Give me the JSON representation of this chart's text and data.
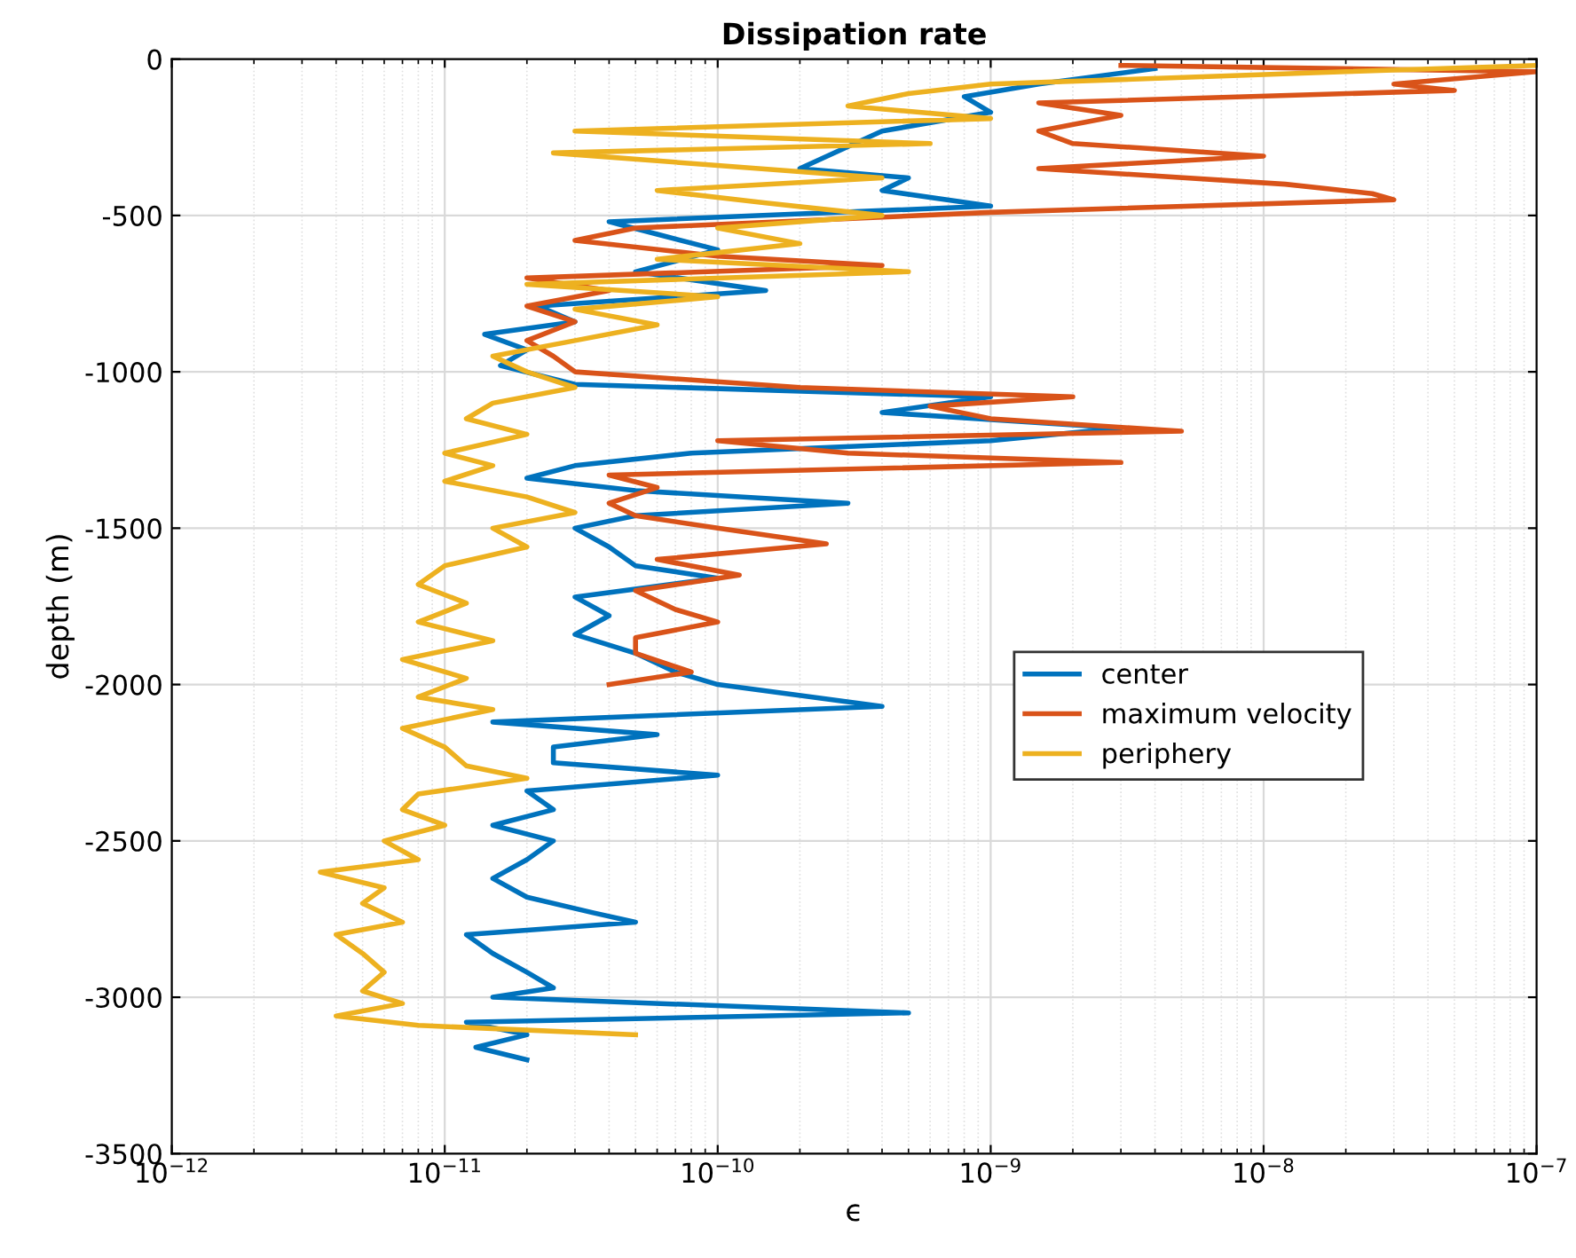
{
  "chart_data": {
    "type": "line",
    "title": "Dissipation rate",
    "xlabel": "ϵ",
    "ylabel": "depth (m)",
    "log": "x",
    "grid": true,
    "legend": "center right",
    "line_style": "solid",
    "marker": "none",
    "xlim": [
      1e-12,
      1e-07
    ],
    "xticks": [
      {
        "value": 1e-12,
        "label": "10$^{−12}$"
      },
      {
        "value": 1e-11,
        "label": "10$^{−11}$"
      },
      {
        "value": 1e-10,
        "label": "10$^{−10}$"
      },
      {
        "value": 1e-09,
        "label": "10$^{−9}$"
      },
      {
        "value": 1e-08,
        "label": "10$^{−8}$"
      },
      {
        "value": 1e-07,
        "label": "10$^{−7}$"
      }
    ],
    "ylim": [
      -3500,
      0
    ],
    "yticks": [
      -3500,
      -3000,
      -2500,
      -2000,
      -1500,
      -1000,
      -500,
      0
    ],
    "series": [
      {
        "name": "center",
        "color": "#0072bd",
        "x": [
          4e-09,
          1.5e-09,
          8e-10,
          1e-09,
          4e-10,
          3e-10,
          2e-10,
          5e-10,
          4e-10,
          1e-09,
          4e-11,
          6e-11,
          1e-10,
          5e-11,
          1.5e-10,
          2.2e-11,
          3e-11,
          1.4e-11,
          2e-11,
          1.6e-11,
          3e-11,
          1e-09,
          4e-10,
          3e-09,
          1e-09,
          8e-11,
          3e-11,
          2e-11,
          5e-11,
          3e-10,
          5e-11,
          3e-11,
          4e-11,
          5e-11,
          1e-10,
          3e-11,
          4e-11,
          3e-11,
          5e-11,
          7e-11,
          1e-10,
          4e-10,
          1.5e-11,
          6e-11,
          2.5e-11,
          2.5e-11,
          1e-10,
          2e-11,
          2.5e-11,
          1.5e-11,
          2.5e-11,
          2e-11,
          1.5e-11,
          2e-11,
          3.5e-11,
          5e-11,
          1.2e-11,
          1.5e-11,
          2e-11,
          2.5e-11,
          1.5e-11,
          5e-10,
          1.2e-11,
          2e-11,
          1.3e-11,
          2e-11
        ],
        "values": [
          -30,
          -80,
          -120,
          -170,
          -230,
          -280,
          -350,
          -380,
          -420,
          -470,
          -520,
          -560,
          -610,
          -680,
          -740,
          -790,
          -840,
          -880,
          -930,
          -980,
          -1040,
          -1080,
          -1130,
          -1180,
          -1220,
          -1260,
          -1300,
          -1340,
          -1380,
          -1420,
          -1460,
          -1500,
          -1560,
          -1620,
          -1660,
          -1720,
          -1780,
          -1840,
          -1900,
          -1960,
          -2000,
          -2070,
          -2120,
          -2160,
          -2200,
          -2250,
          -2290,
          -2340,
          -2400,
          -2450,
          -2500,
          -2560,
          -2620,
          -2680,
          -2730,
          -2760,
          -2800,
          -2860,
          -2920,
          -2970,
          -3000,
          -3050,
          -3080,
          -3120,
          -3160,
          -3200
        ]
      },
      {
        "name": "maximum velocity",
        "color": "#d95319",
        "x": [
          3e-09,
          1e-07,
          3e-08,
          5e-08,
          1.5e-09,
          3e-09,
          1.5e-09,
          2e-09,
          1e-08,
          1.5e-09,
          1.2e-08,
          2.5e-08,
          3e-08,
          1e-09,
          5e-11,
          3e-11,
          1e-10,
          4e-10,
          2e-11,
          4e-11,
          2e-11,
          3e-11,
          2e-11,
          2.5e-11,
          3e-11,
          2e-10,
          2e-09,
          6e-10,
          1e-09,
          5e-09,
          1e-10,
          3e-10,
          3e-09,
          4e-11,
          6e-11,
          4e-11,
          5e-11,
          1e-10,
          2.5e-10,
          6e-11,
          1.2e-10,
          5e-11,
          7e-11,
          1e-10,
          5e-11,
          5e-11,
          8e-11,
          4e-11
        ],
        "values": [
          -20,
          -40,
          -80,
          -100,
          -140,
          -180,
          -230,
          -270,
          -310,
          -350,
          -400,
          -430,
          -450,
          -490,
          -540,
          -580,
          -630,
          -660,
          -700,
          -740,
          -790,
          -840,
          -900,
          -950,
          -1000,
          -1050,
          -1080,
          -1110,
          -1150,
          -1190,
          -1220,
          -1260,
          -1290,
          -1330,
          -1370,
          -1420,
          -1460,
          -1500,
          -1550,
          -1600,
          -1650,
          -1700,
          -1760,
          -1800,
          -1850,
          -1900,
          -1960,
          -2000
        ]
      },
      {
        "name": "periphery",
        "color": "#edb120",
        "x": [
          1e-07,
          2e-08,
          1e-09,
          5e-10,
          3e-10,
          1e-09,
          3e-11,
          6e-10,
          2.5e-11,
          1e-10,
          4e-10,
          6e-11,
          1.5e-10,
          4e-10,
          1e-10,
          2e-10,
          6e-11,
          5e-10,
          2e-11,
          1e-10,
          3e-11,
          6e-11,
          3e-11,
          1.5e-11,
          2e-11,
          3e-11,
          1.5e-11,
          1.2e-11,
          2e-11,
          1e-11,
          1.5e-11,
          1e-11,
          2e-11,
          3e-11,
          1.5e-11,
          2e-11,
          1e-11,
          8e-12,
          1.2e-11,
          8e-12,
          1.5e-11,
          7e-12,
          1.2e-11,
          8e-12,
          1.5e-11,
          7e-12,
          1e-11,
          1.2e-11,
          2e-11,
          8e-12,
          7e-12,
          1e-11,
          6e-12,
          8e-12,
          3.5e-12,
          6e-12,
          5e-12,
          7e-12,
          4e-12,
          5e-12,
          6e-12,
          5e-12,
          7e-12,
          4e-12,
          8e-12,
          5e-11
        ],
        "values": [
          -20,
          -40,
          -80,
          -110,
          -150,
          -190,
          -230,
          -270,
          -300,
          -340,
          -380,
          -420,
          -460,
          -500,
          -540,
          -590,
          -640,
          -680,
          -720,
          -760,
          -800,
          -850,
          -900,
          -950,
          -1000,
          -1050,
          -1100,
          -1150,
          -1200,
          -1260,
          -1300,
          -1350,
          -1400,
          -1450,
          -1500,
          -1560,
          -1620,
          -1680,
          -1740,
          -1800,
          -1860,
          -1920,
          -1980,
          -2040,
          -2080,
          -2140,
          -2200,
          -2260,
          -2300,
          -2350,
          -2400,
          -2450,
          -2500,
          -2560,
          -2600,
          -2650,
          -2700,
          -2760,
          -2800,
          -2860,
          -2920,
          -2980,
          -3020,
          -3060,
          -3090,
          -3120
        ]
      }
    ]
  }
}
